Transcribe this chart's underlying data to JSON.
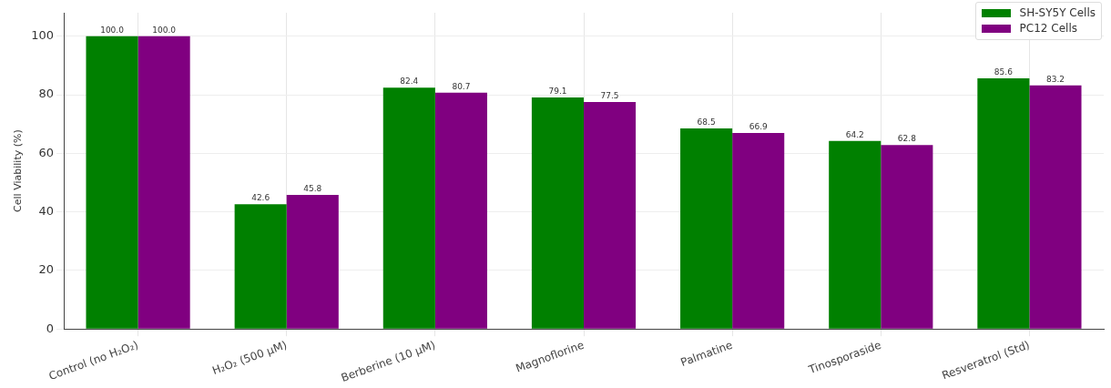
{
  "chart_data": {
    "type": "bar",
    "ylabel": "Cell Viability (%)",
    "categories": [
      "Control (no H₂O₂)",
      "H₂O₂ (500 µM)",
      "Berberine (10 µM)",
      "Magnoflorine",
      "Palmatine",
      "Tinosporaside",
      "Resveratrol (Std)"
    ],
    "series": [
      {
        "name": "SH-SY5Y Cells",
        "color": "#008000",
        "values": [
          100.0,
          42.6,
          82.4,
          79.1,
          68.5,
          64.2,
          85.6
        ],
        "value_labels": [
          "100.0",
          "42.6",
          "82.4",
          "79.1",
          "68.5",
          "64.2",
          "85.6"
        ]
      },
      {
        "name": "PC12 Cells",
        "color": "#800080",
        "values": [
          100.0,
          45.8,
          80.7,
          77.5,
          66.9,
          62.8,
          83.2
        ],
        "value_labels": [
          "100.0",
          "45.8",
          "80.7",
          "77.5",
          "66.9",
          "62.8",
          "83.2"
        ]
      }
    ],
    "ylim": [
      0,
      108
    ],
    "yticks": [
      0,
      20,
      40,
      60,
      80,
      100
    ],
    "grid": true,
    "legend": "top right"
  }
}
